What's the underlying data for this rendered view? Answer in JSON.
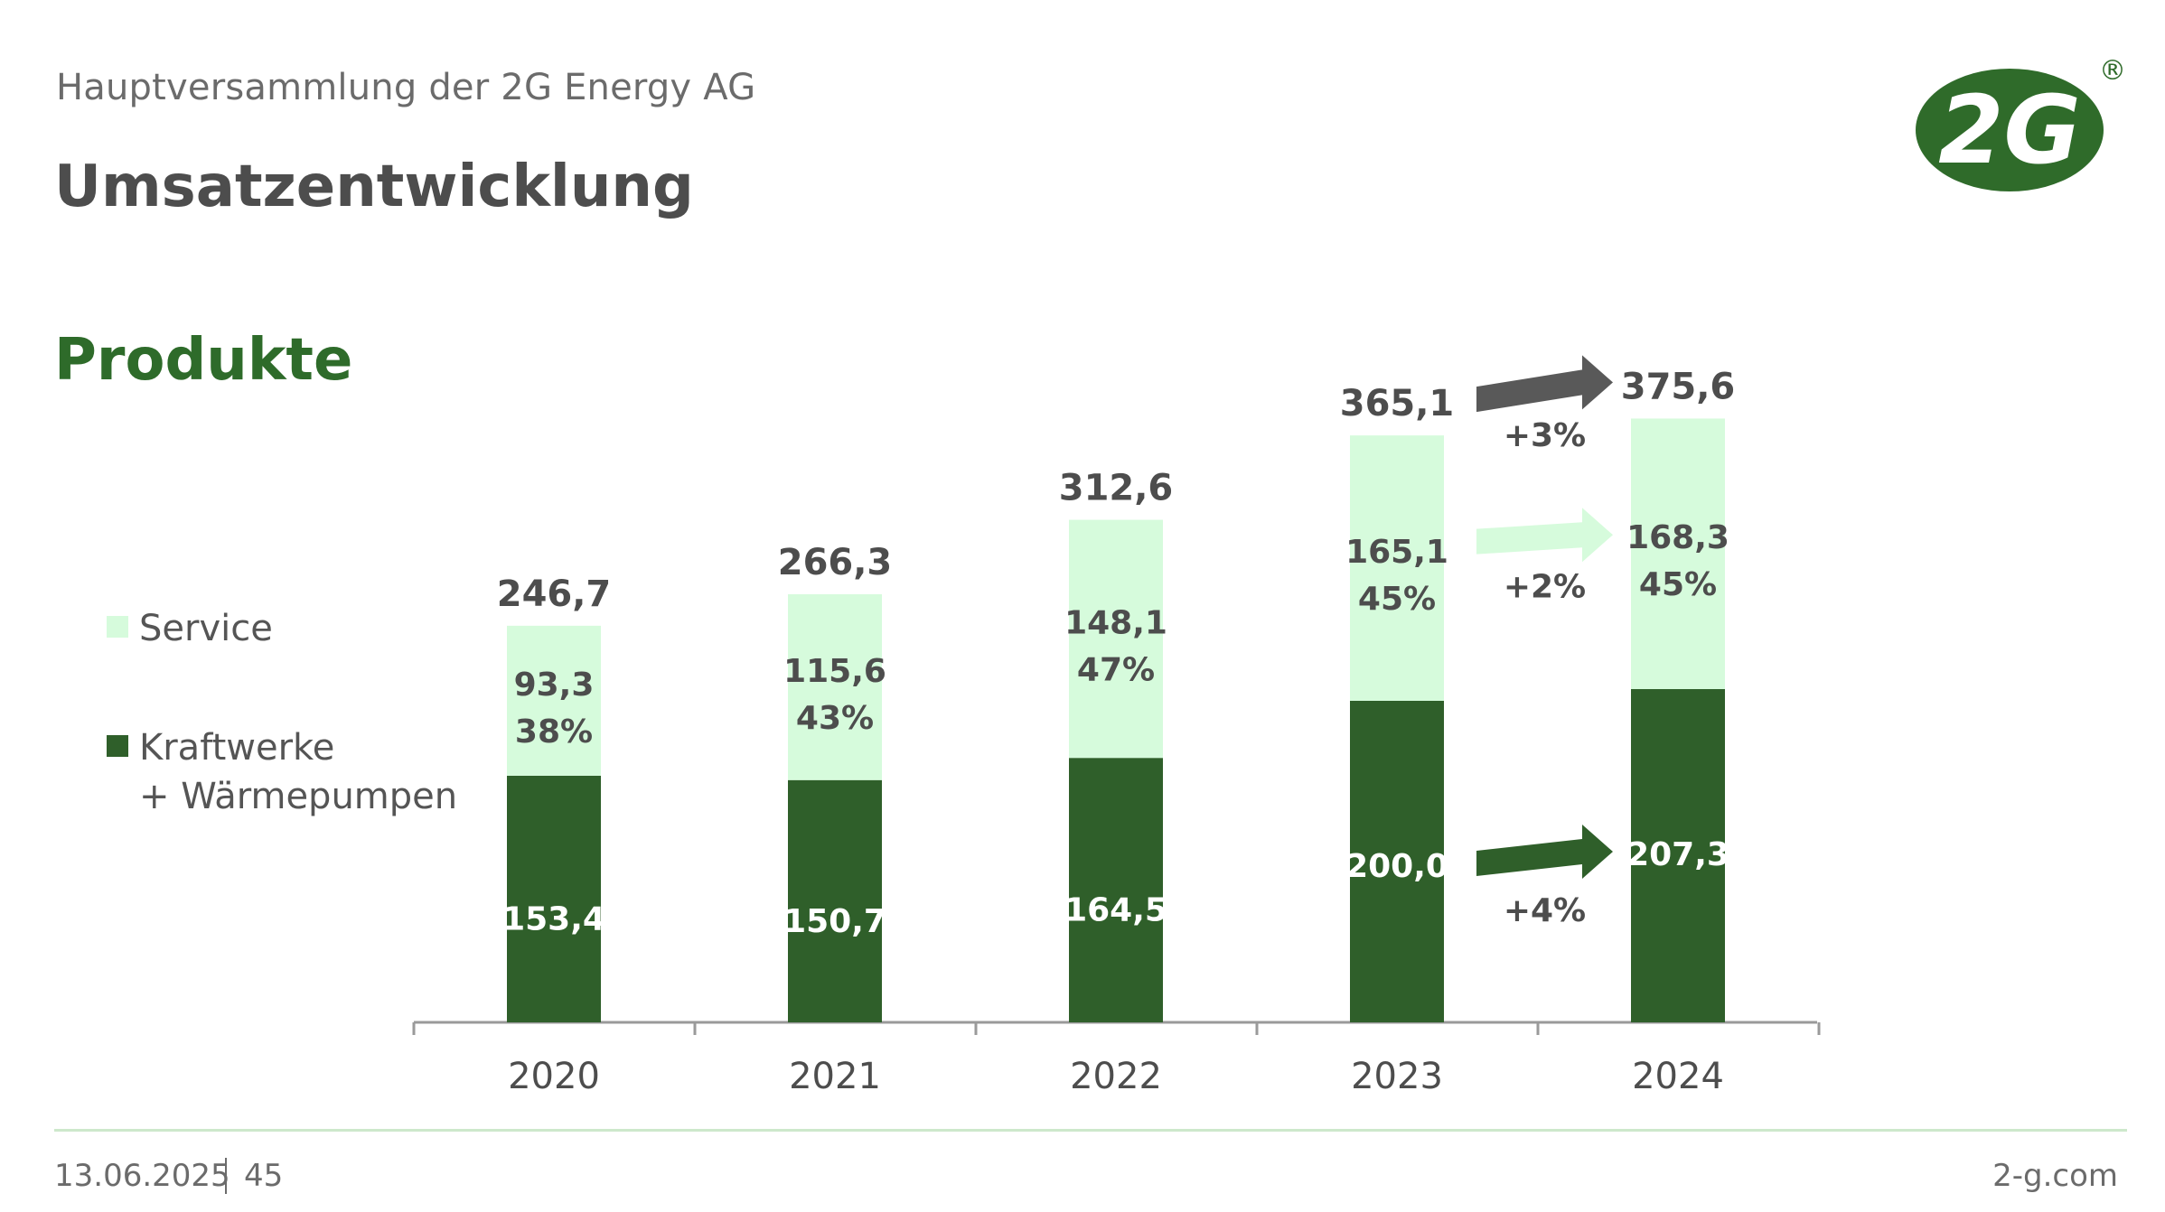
{
  "header": {
    "subtitle": "Hauptversammlung der 2G Energy AG",
    "title": "Umsatzentwicklung",
    "section": "Produkte",
    "logo_text": "2G",
    "logo_mark": "®"
  },
  "colors": {
    "service": "#d6fbdc",
    "kraftwerke": "#2f5f2a",
    "dark_text": "#4d4d4d",
    "axis": "#9a9a9a",
    "arrow_total": "#595959",
    "arrow_service": "#d6fbdc",
    "arrow_kraftwerke": "#2f5f2a"
  },
  "legend": {
    "service": "Service",
    "kraftwerke_line1": "Kraftwerke",
    "kraftwerke_line2": "+ Wärmepumpen"
  },
  "chart_data": {
    "type": "bar",
    "stacked": true,
    "categories": [
      "2020",
      "2021",
      "2022",
      "2023",
      "2024"
    ],
    "series": [
      {
        "name": "Kraftwerke + Wärmepumpen",
        "values": [
          153.4,
          150.7,
          164.5,
          200.0,
          207.3
        ],
        "labels": [
          "153,4",
          "150,7",
          "164,5",
          "200,0",
          "207,3"
        ]
      },
      {
        "name": "Service",
        "values": [
          93.3,
          115.6,
          148.1,
          165.1,
          168.3
        ],
        "labels": [
          "93,3",
          "115,6",
          "148,1",
          "165,1",
          "168,3"
        ],
        "share_labels": [
          "38%",
          "43%",
          "47%",
          "45%",
          "45%"
        ]
      }
    ],
    "totals": [
      246.7,
      266.3,
      312.6,
      365.1,
      375.6
    ],
    "total_labels": [
      "246,7",
      "266,3",
      "312,6",
      "365,1",
      "375,6"
    ],
    "growth_annotations": [
      {
        "target": "total",
        "label": "+3%"
      },
      {
        "target": "service",
        "label": "+2%"
      },
      {
        "target": "kraftwerke",
        "label": "+4%"
      }
    ],
    "ylim": [
      0,
      400
    ],
    "legend_position": "left"
  },
  "footer": {
    "date": "13.06.2025",
    "page": "45",
    "url": "2-g.com"
  }
}
